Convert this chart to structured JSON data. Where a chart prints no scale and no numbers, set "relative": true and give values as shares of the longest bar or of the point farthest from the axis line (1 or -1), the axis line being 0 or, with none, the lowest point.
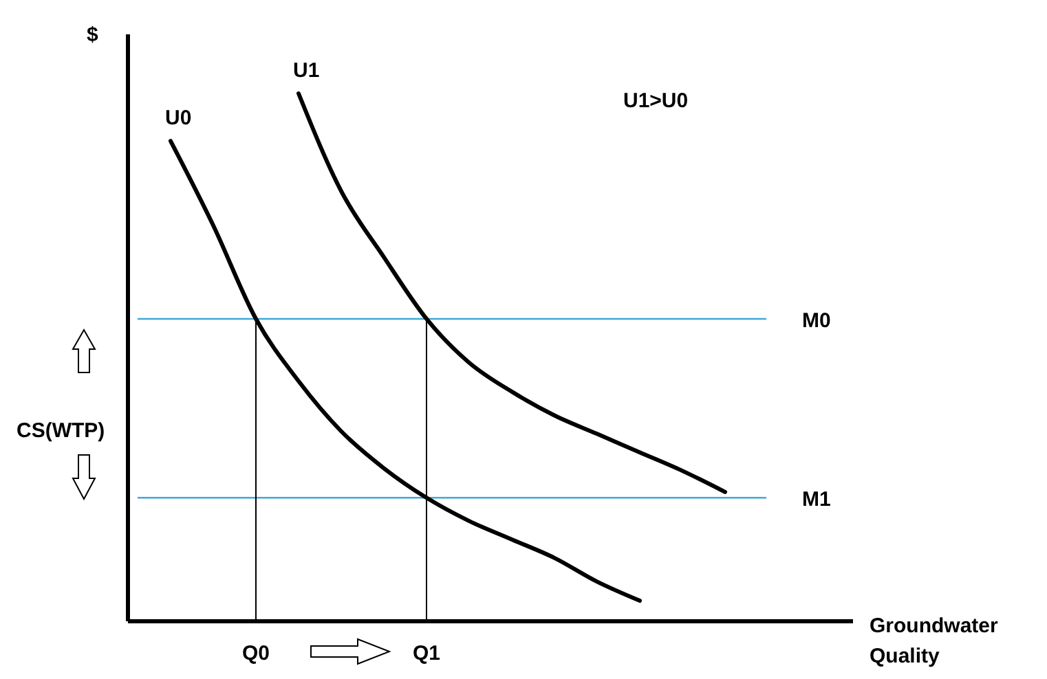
{
  "chart_data": {
    "type": "line",
    "relative": true,
    "ylabel": "$",
    "xlabel": "Groundwater Quality",
    "categories": [
      null,
      null,
      null,
      "Q0",
      null,
      null,
      null,
      "Q1",
      null,
      null,
      null,
      null,
      null,
      null,
      null,
      null,
      null
    ],
    "legend": false,
    "grid": false,
    "marker": "none",
    "line_style": "solid",
    "series": [
      {
        "name": "U0",
        "color": "#000000",
        "values": [
          null,
          0.91,
          0.75,
          0.573,
          0.455,
          0.36,
          0.29,
          0.234,
          0.19,
          0.155,
          0.12,
          0.075,
          0.039,
          null,
          null,
          null,
          null
        ]
      },
      {
        "name": "U1",
        "color": "#000000",
        "values": [
          null,
          null,
          null,
          null,
          1.0,
          0.815,
          0.69,
          0.573,
          0.49,
          0.435,
          0.39,
          0.355,
          0.32,
          0.285,
          0.245,
          null,
          null
        ]
      }
    ],
    "ref_lines": [
      {
        "axis": "y",
        "value": 0.573,
        "label": "M0",
        "color": "#3fa9d9"
      },
      {
        "axis": "y",
        "value": 0.234,
        "label": "M1",
        "color": "#3fa9d9"
      },
      {
        "axis": "x",
        "value": "Q0",
        "color": "#000000"
      },
      {
        "axis": "x",
        "value": "Q1",
        "color": "#000000"
      }
    ],
    "annotations": [
      "U1>U0",
      "CS(WTP)"
    ]
  }
}
